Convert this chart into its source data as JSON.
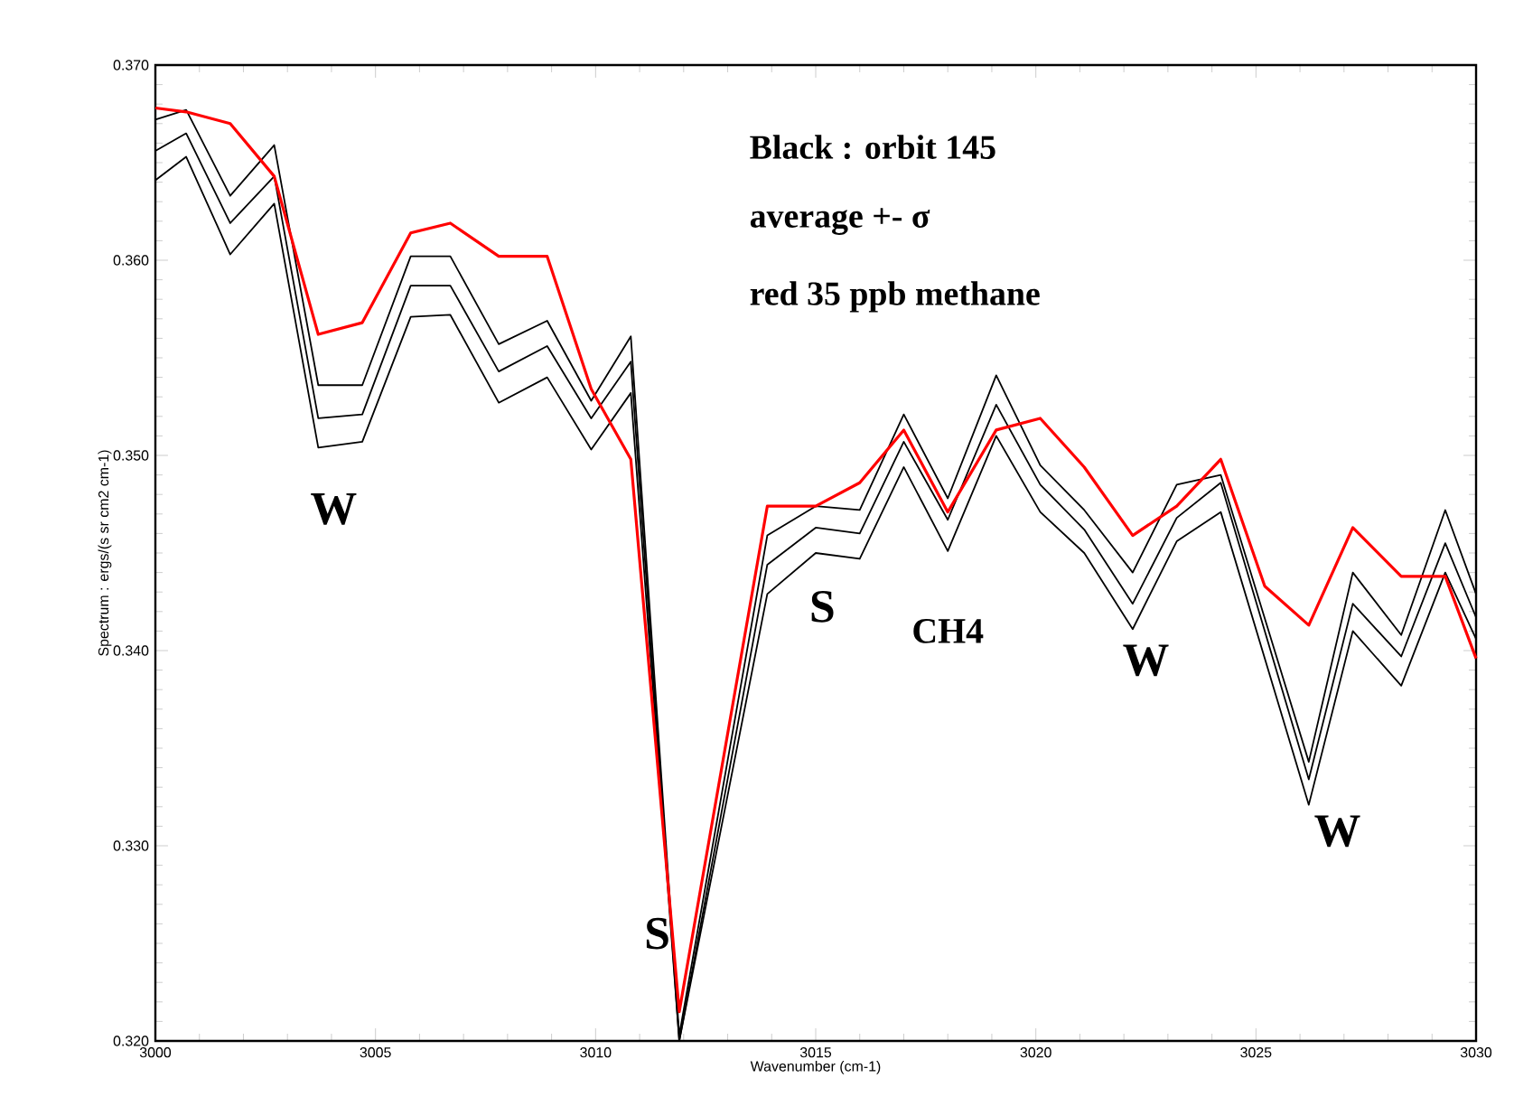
{
  "chart_data": {
    "type": "line",
    "xlabel": "Wavenumber (cm-1)",
    "ylabel": "Spectrum : ergs/(s sr cm2 cm-1)",
    "x": [
      3000,
      3000.7,
      3001.7,
      3002.7,
      3003.7,
      3004.7,
      3005.8,
      3006.7,
      3007.8,
      3008.9,
      3009.9,
      3010.8,
      3011.9,
      3013.9,
      3015,
      3016,
      3017,
      3018,
      3019.1,
      3020.1,
      3021.1,
      3022.2,
      3023.2,
      3024.2,
      3026.2,
      3027.2,
      3028.3,
      3029.3,
      3030
    ],
    "series": [
      {
        "color": "#000000",
        "values": [
          0.3672,
          0.3677,
          0.3633,
          0.3659,
          0.3536,
          0.3536,
          0.3602,
          0.3602,
          0.3557,
          0.3569,
          0.3528,
          0.3561,
          0.3203,
          0.3459,
          0.3474,
          0.3472,
          0.3521,
          0.3478,
          0.3541,
          0.3495,
          0.3472,
          0.344,
          0.3485,
          0.349,
          0.3343,
          0.344,
          0.3408,
          0.3472,
          0.3429
        ]
      },
      {
        "color": "#000000",
        "values": [
          0.3656,
          0.3665,
          0.3619,
          0.3643,
          0.3519,
          0.3521,
          0.3587,
          0.3587,
          0.3543,
          0.3556,
          0.3519,
          0.3548,
          0.32,
          0.3444,
          0.3463,
          0.346,
          0.3507,
          0.3467,
          0.3526,
          0.3485,
          0.3462,
          0.3424,
          0.3468,
          0.3486,
          0.3334,
          0.3424,
          0.3397,
          0.3455,
          0.3417
        ]
      },
      {
        "color": "#000000",
        "values": [
          0.3641,
          0.3653,
          0.3603,
          0.3629,
          0.3504,
          0.3507,
          0.3571,
          0.3572,
          0.3527,
          0.354,
          0.3503,
          0.3532,
          0.32,
          0.3429,
          0.345,
          0.3447,
          0.3494,
          0.3451,
          0.351,
          0.3471,
          0.345,
          0.3411,
          0.3456,
          0.3471,
          0.3321,
          0.341,
          0.3382,
          0.344,
          0.3406
        ]
      },
      {
        "color": "#ff0000",
        "x": [
          3000,
          3000.7,
          3001.7,
          3002.7,
          3003.7,
          3004.7,
          3005.8,
          3006.7,
          3007.8,
          3008.9,
          3009.9,
          3010.8,
          3011.9,
          3013.9,
          3015,
          3016,
          3017,
          3018,
          3019.1,
          3020.1,
          3021.1,
          3022.2,
          3023.2,
          3024.2,
          3025.2,
          3026.2,
          3027.2,
          3028.3,
          3029.3,
          3030
        ],
        "values": [
          0.3678,
          0.3676,
          0.367,
          0.3643,
          0.3562,
          0.3568,
          0.3614,
          0.3619,
          0.3602,
          0.3602,
          0.3534,
          0.3498,
          0.3215,
          0.3474,
          0.3474,
          0.3486,
          0.3513,
          0.3471,
          0.3513,
          0.3519,
          0.3494,
          0.3459,
          0.3474,
          0.3498,
          0.3433,
          0.3413,
          0.3463,
          0.3438,
          0.3438,
          0.3396
        ]
      }
    ],
    "xlim": [
      3000,
      3030
    ],
    "ylim": [
      0.32,
      0.37
    ],
    "xticks": [
      3000,
      3005,
      3010,
      3015,
      3020,
      3025,
      3030
    ],
    "yticks": [
      {
        "value": 0.32,
        "label": "0.320"
      },
      {
        "value": 0.33,
        "label": "0.330"
      },
      {
        "value": 0.34,
        "label": "0.340"
      },
      {
        "value": 0.35,
        "label": "0.350"
      },
      {
        "value": 0.36,
        "label": "0.360"
      },
      {
        "value": 0.37,
        "label": "0.370"
      }
    ],
    "annotations": [
      "Black : orbit 145",
      "average +- σ",
      "red 35 ppb methane",
      "W",
      "S",
      "S",
      "CH4",
      "W",
      "W"
    ]
  }
}
